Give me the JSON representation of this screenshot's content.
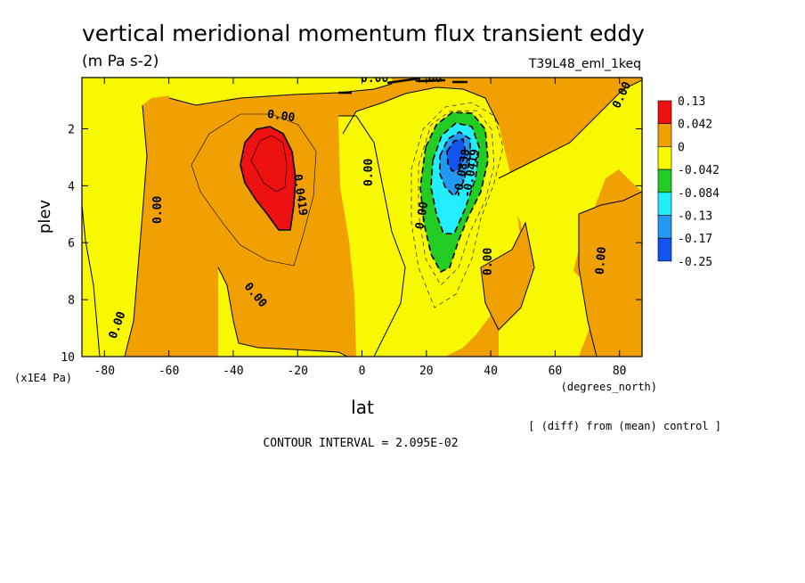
{
  "header": {
    "title": "vertical meridional momentum flux transient eddy",
    "units": "(m Pa s-2)",
    "run_id": "T39L48_eml_1keq"
  },
  "footer": {
    "contour_interval": "CONTOUR INTERVAL = 2.095E-02",
    "diff_note": "[ (diff) from (mean) control ]"
  },
  "chart_data": {
    "type": "heatmap",
    "xlabel": "lat",
    "x_units": "(degrees_north)",
    "ylabel": "plev",
    "y_units": "(x1E4 Pa)",
    "xlim": [
      -87,
      87
    ],
    "ylim": [
      10,
      0.2
    ],
    "x_ticks": [
      -80,
      -60,
      -40,
      -20,
      0,
      20,
      40,
      60,
      80
    ],
    "y_ticks": [
      2,
      4,
      6,
      8,
      10
    ],
    "colorbar": {
      "labels": [
        "0.13",
        "0.042",
        "0",
        "-0.042",
        "-0.084",
        "-0.13",
        "-0.17",
        "-0.25"
      ],
      "colors": [
        "#ee1111",
        "#f0a000",
        "#f8f800",
        "#22cc22",
        "#22eeff",
        "#2299f0",
        "#1155ee"
      ]
    },
    "contour_labels": [
      "0.00",
      "0.00",
      "0.00",
      "0.00",
      "0.00",
      "0.00",
      "0.00",
      "0.00",
      "0.00",
      "0.00",
      "0.00",
      "0.0419",
      "-0.0419",
      "-0.0838"
    ],
    "features": [
      {
        "name": "positive maximum",
        "lat": -28,
        "plev": 3.5,
        "value": 0.13
      },
      {
        "name": "negative minimum",
        "lat": 28,
        "plev": 3.0,
        "value": -0.25
      }
    ]
  }
}
